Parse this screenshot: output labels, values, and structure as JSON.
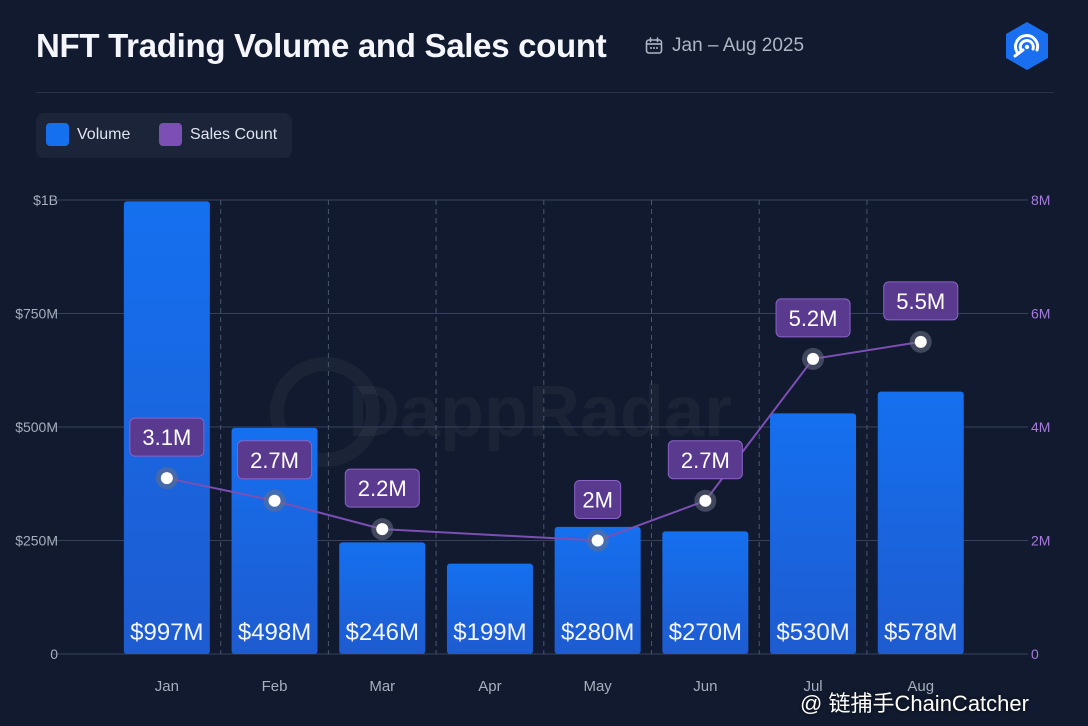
{
  "header": {
    "title": "NFT Trading Volume and Sales count",
    "date_range": "Jan – Aug 2025"
  },
  "brand_watermark": "DappRadar",
  "corner_watermark": "@ 链捕手ChainCatcher",
  "colors": {
    "background": "#111a2e",
    "volume_top": "#1570ef",
    "volume_bottom": "#1e5bd0",
    "sales_line": "#7b4fb3",
    "sales_label_bg": "#5a3a8f",
    "grid": "#37415a",
    "right_axis": "#a77bdf"
  },
  "chart_data": {
    "type": "bar",
    "categories": [
      "Jan",
      "Feb",
      "Mar",
      "Apr",
      "May",
      "Jun",
      "Jul",
      "Aug"
    ],
    "legend_position": "top-left",
    "series": [
      {
        "name": "Volume",
        "type": "bar",
        "axis": "left",
        "values": [
          997,
          498,
          246,
          199,
          280,
          270,
          530,
          578
        ],
        "labels": [
          "$997M",
          "$498M",
          "$246M",
          "$199M",
          "$280M",
          "$270M",
          "$530M",
          "$578M"
        ]
      },
      {
        "name": "Sales Count",
        "type": "line",
        "axis": "right",
        "values": [
          3.1,
          2.7,
          2.2,
          2.0,
          2.7,
          5.2,
          5.5
        ],
        "labels": [
          "3.1M",
          "2.7M",
          "2.2M",
          "2M",
          "2.7M",
          "5.2M",
          "5.5M"
        ],
        "x": [
          "Jan",
          "Feb",
          "Mar",
          "May",
          "Jun",
          "Jul",
          "Aug"
        ]
      }
    ],
    "y_left": {
      "lim": [
        0,
        1000
      ],
      "ticks": [
        0,
        250,
        500,
        750,
        1000
      ],
      "tick_labels": [
        "0",
        "$250M",
        "$500M",
        "$750M",
        "$1B"
      ]
    },
    "y_right": {
      "lim": [
        0,
        8
      ],
      "ticks": [
        0,
        2,
        4,
        6,
        8
      ],
      "tick_labels": [
        "0",
        "2M",
        "4M",
        "6M",
        "8M"
      ]
    },
    "grid": true
  }
}
